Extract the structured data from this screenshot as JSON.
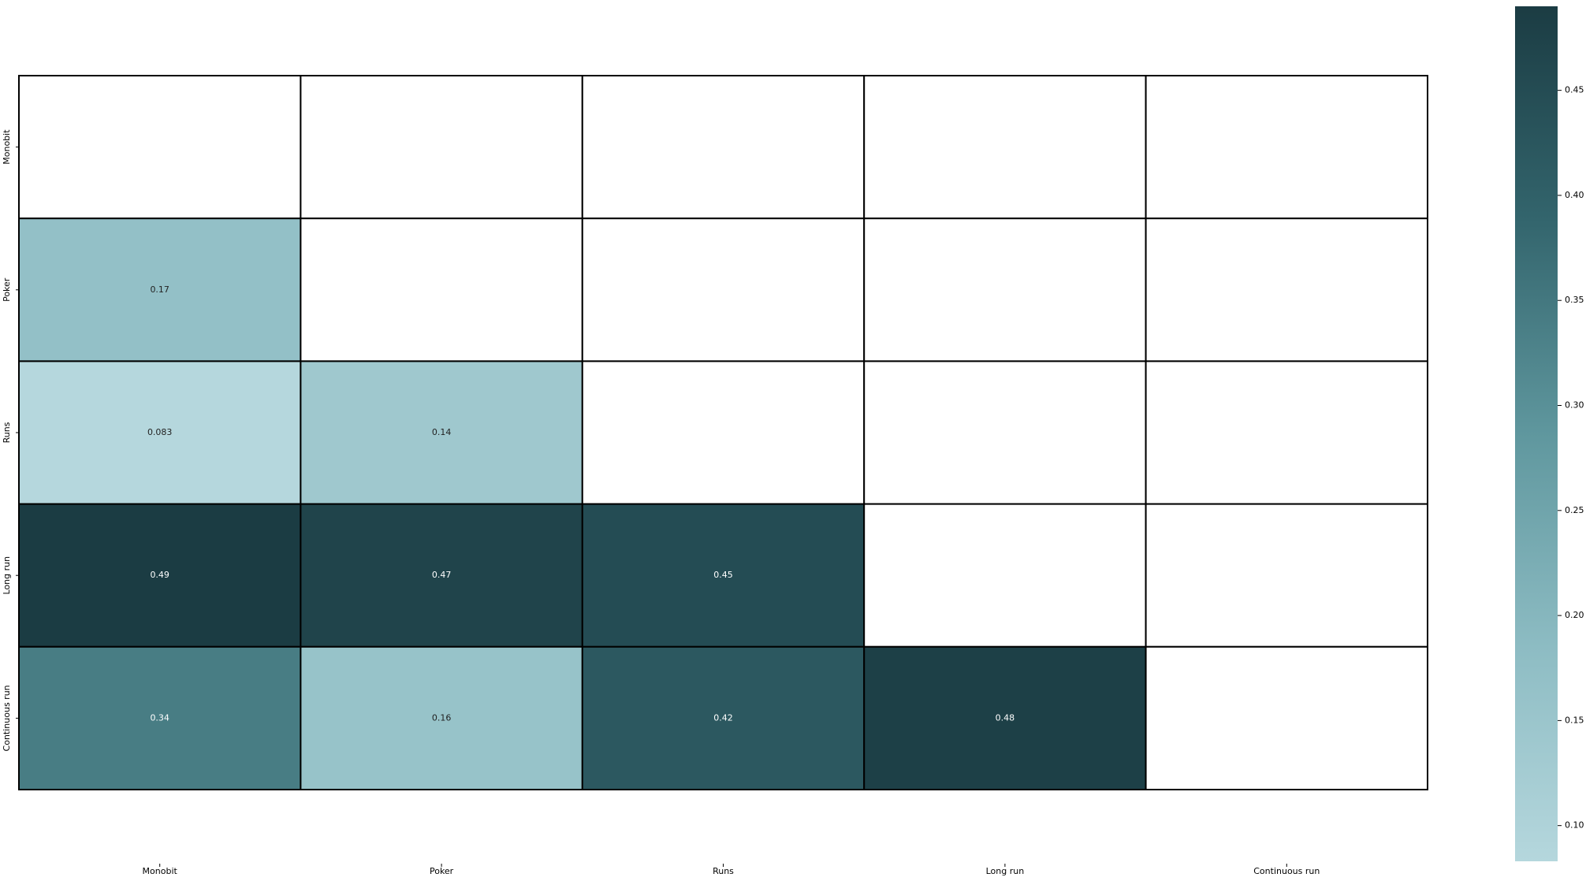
{
  "chart_data": {
    "type": "heatmap",
    "title": "",
    "xlabel": "",
    "ylabel": "",
    "rows": [
      "Monobit",
      "Poker",
      "Runs",
      "Long run",
      "Continuous run"
    ],
    "columns": [
      "Monobit",
      "Poker",
      "Runs",
      "Long run",
      "Continuous run"
    ],
    "mask": "upper triangle including diagonal (blank cells)",
    "values": [
      [
        null,
        null,
        null,
        null,
        null
      ],
      [
        0.17,
        null,
        null,
        null,
        null
      ],
      [
        0.083,
        0.14,
        null,
        null,
        null
      ],
      [
        0.49,
        0.47,
        0.45,
        null,
        null
      ],
      [
        0.34,
        0.16,
        0.42,
        0.48,
        null
      ]
    ],
    "value_labels": [
      [
        "",
        "",
        "",
        "",
        ""
      ],
      [
        "0.17",
        "",
        "",
        "",
        ""
      ],
      [
        "0.083",
        "0.14",
        "",
        "",
        ""
      ],
      [
        "0.49",
        "0.47",
        "0.45",
        "",
        ""
      ],
      [
        "0.34",
        "0.16",
        "0.42",
        "0.48",
        ""
      ]
    ],
    "colorbar": {
      "range": [
        0.083,
        0.49
      ],
      "ticks": [
        0.1,
        0.15,
        0.2,
        0.25,
        0.3,
        0.35,
        0.4,
        0.45
      ],
      "tick_labels": [
        "0.10",
        "0.15",
        "0.20",
        "0.25",
        "0.30",
        "0.35",
        "0.40",
        "0.45"
      ],
      "color_low": "#b5d7dd",
      "color_high": "#1b3c43"
    },
    "grid": true,
    "cell_border_color": "#000000"
  }
}
